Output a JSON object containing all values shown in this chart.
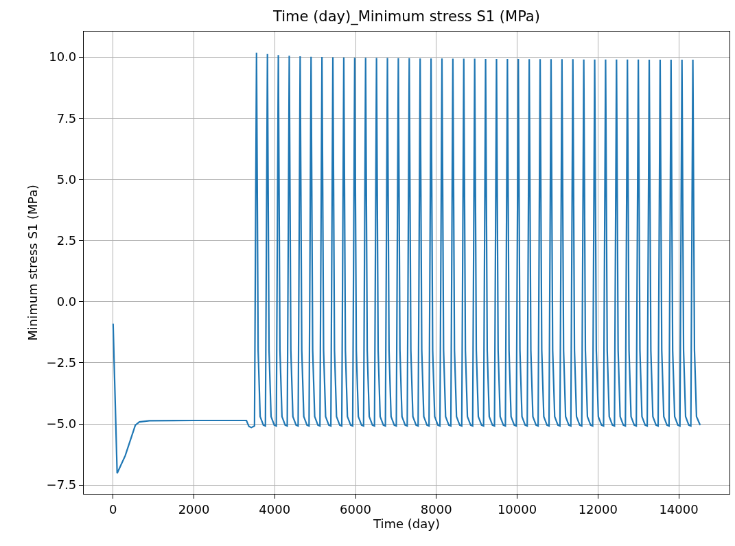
{
  "chart_data": {
    "type": "line",
    "title": "Time (day)_Minimum stress S1 (MPa)",
    "xlabel": "Time (day)",
    "ylabel": "Minimum stress S1 (MPa)",
    "xlim": [
      -727,
      15257
    ],
    "xticks": [
      0,
      2000,
      4000,
      6000,
      8000,
      10000,
      12000,
      14000
    ],
    "ylim": [
      -7.86,
      11.04
    ],
    "yticks": [
      {
        "value": -7.5,
        "label": "−7.5"
      },
      {
        "value": -5,
        "label": "−5.0"
      },
      {
        "value": -2.5,
        "label": "−2.5"
      },
      {
        "value": 0,
        "label": "0.0"
      },
      {
        "value": 2.5,
        "label": "2.5"
      },
      {
        "value": 5,
        "label": "5.0"
      },
      {
        "value": 7.5,
        "label": "7.5"
      },
      {
        "value": 10,
        "label": "10.0"
      }
    ],
    "grid": true,
    "line_style": "solid",
    "series": [
      {
        "color": "#1f77b4",
        "x": [
          0,
          100,
          300,
          550,
          650,
          900,
          2000,
          3300,
          3360,
          3420,
          3480,
          3500,
          3550,
          3590,
          3640,
          3720,
          3770,
          3820,
          3860,
          3910,
          3990,
          4040,
          4090,
          4130,
          4180,
          4260,
          4310,
          4360,
          4400,
          4450,
          4530,
          4580,
          4630,
          4670,
          4720,
          4800,
          4850,
          4900,
          4940,
          4990,
          5070,
          5120,
          5170,
          5210,
          5260,
          5340,
          5390,
          5440,
          5480,
          5530,
          5610,
          5660,
          5710,
          5750,
          5800,
          5880,
          5930,
          5980,
          6020,
          6070,
          6150,
          6200,
          6250,
          6290,
          6340,
          6420,
          6470,
          6520,
          6560,
          6610,
          6690,
          6740,
          6790,
          6830,
          6880,
          6960,
          7010,
          7060,
          7100,
          7150,
          7230,
          7280,
          7330,
          7370,
          7420,
          7500,
          7550,
          7600,
          7640,
          7690,
          7770,
          7820,
          7870,
          7910,
          7960,
          8040,
          8090,
          8140,
          8180,
          8230,
          8310,
          8360,
          8410,
          8450,
          8500,
          8580,
          8630,
          8680,
          8720,
          8770,
          8850,
          8900,
          8950,
          8990,
          9040,
          9120,
          9170,
          9220,
          9260,
          9310,
          9390,
          9440,
          9490,
          9530,
          9580,
          9660,
          9710,
          9760,
          9800,
          9850,
          9930,
          9980,
          10030,
          10070,
          10120,
          10200,
          10250,
          10300,
          10340,
          10390,
          10470,
          10520,
          10570,
          10610,
          10660,
          10740,
          10790,
          10840,
          10880,
          10930,
          11010,
          11060,
          11110,
          11150,
          11200,
          11280,
          11330,
          11380,
          11420,
          11470,
          11550,
          11600,
          11650,
          11690,
          11740,
          11820,
          11870,
          11920,
          11960,
          12010,
          12090,
          12140,
          12190,
          12230,
          12280,
          12360,
          12410,
          12460,
          12500,
          12550,
          12630,
          12680,
          12730,
          12770,
          12820,
          12900,
          12950,
          13000,
          13040,
          13090,
          13170,
          13220,
          13270,
          13310,
          13360,
          13440,
          13490,
          13540,
          13580,
          13630,
          13710,
          13760,
          13810,
          13850,
          13900,
          13980,
          14030,
          14080,
          14120,
          14170,
          14250,
          14300,
          14350,
          14390,
          14440,
          14530
        ],
        "values": [
          -0.9,
          -7.02,
          -6.3,
          -5.05,
          -4.92,
          -4.87,
          -4.86,
          -4.86,
          -5.1,
          -5.15,
          -5.1,
          -5.08,
          10.18,
          -2.0,
          -4.7,
          -5.05,
          -5.08,
          10.12,
          -2.0,
          -4.7,
          -5.05,
          -5.08,
          10.08,
          -2.0,
          -4.7,
          -5.05,
          -5.08,
          10.05,
          -2.0,
          -4.7,
          -5.05,
          -5.08,
          10.03,
          -2.0,
          -4.7,
          -5.05,
          -5.08,
          10.01,
          -2.0,
          -4.7,
          -5.05,
          -5.08,
          10.0,
          -2.0,
          -4.7,
          -5.05,
          -5.08,
          9.99,
          -2.0,
          -4.7,
          -5.05,
          -5.08,
          9.98,
          -2.0,
          -4.7,
          -5.05,
          -5.08,
          9.97,
          -2.0,
          -4.7,
          -5.05,
          -5.08,
          9.97,
          -2.0,
          -4.7,
          -5.05,
          -5.08,
          9.96,
          -2.0,
          -4.7,
          -5.05,
          -5.08,
          9.96,
          -2.0,
          -4.7,
          -5.05,
          -5.08,
          9.95,
          -2.0,
          -4.7,
          -5.05,
          -5.08,
          9.95,
          -2.0,
          -4.7,
          -5.05,
          -5.08,
          9.94,
          -2.0,
          -4.7,
          -5.05,
          -5.08,
          9.94,
          -2.0,
          -4.7,
          -5.05,
          -5.08,
          9.94,
          -2.0,
          -4.7,
          -5.05,
          -5.08,
          9.93,
          -2.0,
          -4.7,
          -5.05,
          -5.08,
          9.93,
          -2.0,
          -4.7,
          -5.05,
          -5.08,
          9.93,
          -2.0,
          -4.7,
          -5.05,
          -5.08,
          9.92,
          -2.0,
          -4.7,
          -5.05,
          -5.08,
          9.92,
          -2.0,
          -4.7,
          -5.05,
          -5.08,
          9.92,
          -2.0,
          -4.7,
          -5.05,
          -5.08,
          9.92,
          -2.0,
          -4.7,
          -5.05,
          -5.08,
          9.91,
          -2.0,
          -4.7,
          -5.05,
          -5.08,
          9.91,
          -2.0,
          -4.7,
          -5.05,
          -5.08,
          9.91,
          -2.0,
          -4.7,
          -5.05,
          -5.08,
          9.91,
          -2.0,
          -4.7,
          -5.05,
          -5.08,
          9.91,
          -2.0,
          -4.7,
          -5.05,
          -5.08,
          9.9,
          -2.0,
          -4.7,
          -5.05,
          -5.08,
          9.9,
          -2.0,
          -4.7,
          -5.05,
          -5.08,
          9.9,
          -2.0,
          -4.7,
          -5.05,
          -5.08,
          9.9,
          -2.0,
          -4.7,
          -5.05,
          -5.08,
          9.9,
          -2.0,
          -4.7,
          -5.05,
          -5.08,
          9.9,
          -2.0,
          -4.7,
          -5.05,
          -5.08,
          9.89,
          -2.0,
          -4.7,
          -5.05,
          -5.08,
          9.89,
          -2.0,
          -4.7,
          -5.05,
          -5.08,
          9.89,
          -2.0,
          -4.7,
          -5.05,
          -5.08,
          9.89,
          -2.0,
          -4.7,
          -5.05,
          -5.08,
          9.89,
          -2.0,
          -4.7,
          -5.05
        ]
      }
    ]
  }
}
